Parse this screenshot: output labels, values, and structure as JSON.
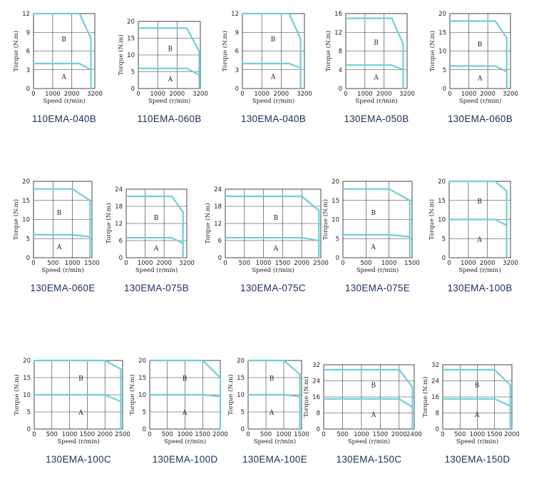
{
  "chart_data": [
    {
      "type": "line",
      "title": "110EMA-040B",
      "xlabel": "Speed (r/min)",
      "ylabel": "Torque (N.m)",
      "xticks": [
        0,
        1000,
        2000,
        3200
      ],
      "yticks": [
        3,
        6,
        9,
        12
      ],
      "xlim": [
        0,
        3200
      ],
      "ylim": [
        0,
        12
      ],
      "region_labels": [
        "B",
        "A"
      ],
      "series": [
        {
          "x": [
            0,
            2400,
            3000,
            3000
          ],
          "y": [
            12,
            12,
            8,
            0
          ]
        },
        {
          "x": [
            0,
            2400,
            3000
          ],
          "y": [
            4,
            4,
            3
          ]
        }
      ]
    },
    {
      "type": "line",
      "title": "110EMA-060B",
      "xlabel": "Speed (r/min)",
      "ylabel": "Torque (N.m)",
      "xticks": [
        0,
        1000,
        2000,
        3200
      ],
      "yticks": [
        5,
        10,
        15,
        20
      ],
      "xlim": [
        0,
        3200
      ],
      "ylim": [
        0,
        20
      ],
      "region_labels": [
        "B",
        "A"
      ],
      "series": [
        {
          "x": [
            0,
            2500,
            3150,
            3150
          ],
          "y": [
            18,
            18,
            11,
            0
          ]
        },
        {
          "x": [
            0,
            2500,
            3150
          ],
          "y": [
            6,
            6,
            4
          ]
        }
      ]
    },
    {
      "type": "line",
      "title": "130EMA-040B",
      "xlabel": "Speed (r/min)",
      "ylabel": "Torque (N.m)",
      "xticks": [
        0,
        1000,
        2000,
        3200
      ],
      "yticks": [
        3,
        6,
        9,
        12
      ],
      "xlim": [
        0,
        3200
      ],
      "ylim": [
        0,
        12
      ],
      "region_labels": [
        "B",
        "A"
      ],
      "series": [
        {
          "x": [
            0,
            2400,
            3000,
            3000
          ],
          "y": [
            12,
            12,
            8,
            0
          ]
        },
        {
          "x": [
            0,
            2400,
            3000
          ],
          "y": [
            4,
            4,
            3.3
          ]
        }
      ]
    },
    {
      "type": "line",
      "title": "130EMA-050B",
      "xlabel": "Speed (r/min)",
      "ylabel": "Torque (N.m)",
      "xticks": [
        0,
        1000,
        2000,
        3200
      ],
      "yticks": [
        4,
        8,
        12,
        16
      ],
      "xlim": [
        0,
        3200
      ],
      "ylim": [
        0,
        16
      ],
      "region_labels": [
        "B",
        "A"
      ],
      "series": [
        {
          "x": [
            0,
            2400,
            3000,
            3000
          ],
          "y": [
            15,
            15,
            9.5,
            0
          ]
        },
        {
          "x": [
            0,
            2400,
            3000
          ],
          "y": [
            5,
            5,
            4
          ]
        }
      ]
    },
    {
      "type": "line",
      "title": "130EMA-060B",
      "xlabel": "Speed (r/min)",
      "ylabel": "Torque (N.m)",
      "xticks": [
        0,
        1000,
        2000,
        3200
      ],
      "yticks": [
        5,
        10,
        15,
        20
      ],
      "xlim": [
        0,
        3200
      ],
      "ylim": [
        0,
        20
      ],
      "region_labels": [
        "B",
        "A"
      ],
      "series": [
        {
          "x": [
            0,
            2400,
            3000,
            3000
          ],
          "y": [
            18,
            18,
            13.5,
            0
          ]
        },
        {
          "x": [
            0,
            2400,
            3000
          ],
          "y": [
            6,
            6,
            4.5
          ]
        }
      ]
    },
    {
      "type": "line",
      "title": "130EMA-060E",
      "xlabel": "Speed (r/min)",
      "ylabel": "Torque (N.m)",
      "xticks": [
        0,
        500,
        1000,
        1500
      ],
      "yticks": [
        5,
        10,
        15,
        20
      ],
      "xlim": [
        0,
        1500
      ],
      "ylim": [
        0,
        20
      ],
      "region_labels": [
        "B",
        "A"
      ],
      "series": [
        {
          "x": [
            0,
            1000,
            1450,
            1450
          ],
          "y": [
            18,
            18,
            15,
            0
          ]
        },
        {
          "x": [
            0,
            1000,
            1450
          ],
          "y": [
            6,
            6,
            5.5
          ]
        }
      ]
    },
    {
      "type": "line",
      "title": "130EMA-075B",
      "xlabel": "Speed (r/min)",
      "ylabel": "Torque (N.m)",
      "xticks": [
        0,
        1000,
        2000,
        3200
      ],
      "yticks": [
        6,
        12,
        18,
        24
      ],
      "xlim": [
        0,
        3200
      ],
      "ylim": [
        0,
        24
      ],
      "region_labels": [
        "B",
        "A"
      ],
      "series": [
        {
          "x": [
            0,
            2400,
            3000,
            3000
          ],
          "y": [
            21.5,
            21.5,
            16,
            0
          ]
        },
        {
          "x": [
            0,
            2400,
            3000
          ],
          "y": [
            7,
            7,
            5
          ]
        }
      ]
    },
    {
      "type": "line",
      "title": "130EMA-075C",
      "xlabel": "Speed (r/min)",
      "ylabel": "Torque (N.m)",
      "xticks": [
        0,
        500,
        1000,
        1500,
        2000,
        2500
      ],
      "yticks": [
        6,
        12,
        18,
        24
      ],
      "xlim": [
        0,
        2500
      ],
      "ylim": [
        0,
        24
      ],
      "region_labels": [
        "B",
        "A"
      ],
      "series": [
        {
          "x": [
            0,
            2000,
            2450,
            2450
          ],
          "y": [
            21.5,
            21.5,
            16.5,
            0
          ]
        },
        {
          "x": [
            0,
            2000,
            2450
          ],
          "y": [
            7,
            7,
            6
          ]
        }
      ]
    },
    {
      "type": "line",
      "title": "130EMA-075E",
      "xlabel": "Speed (r/min)",
      "ylabel": "Torque (N.m)",
      "xticks": [
        0,
        500,
        1000,
        1500
      ],
      "yticks": [
        5,
        10,
        15,
        20
      ],
      "xlim": [
        0,
        1500
      ],
      "ylim": [
        0,
        20
      ],
      "region_labels": [
        "B",
        "A"
      ],
      "series": [
        {
          "x": [
            0,
            1000,
            1450,
            1450
          ],
          "y": [
            18,
            18,
            15,
            0
          ]
        },
        {
          "x": [
            0,
            1000,
            1450
          ],
          "y": [
            6,
            6,
            5.5
          ]
        }
      ]
    },
    {
      "type": "line",
      "title": "130EMA-100B",
      "xlabel": "Speed (r/min)",
      "ylabel": "Torque (N.m)",
      "xticks": [
        0,
        1000,
        2000,
        3200
      ],
      "yticks": [
        5,
        10,
        15,
        20
      ],
      "xlim": [
        0,
        3200
      ],
      "ylim": [
        0,
        20
      ],
      "region_labels": [
        "B",
        "A"
      ],
      "series": [
        {
          "x": [
            0,
            2400,
            3000,
            3000
          ],
          "y": [
            20,
            20,
            17.5,
            0
          ]
        },
        {
          "x": [
            0,
            2400,
            3000
          ],
          "y": [
            10,
            10,
            8.5
          ]
        }
      ]
    },
    {
      "type": "line",
      "title": "130EMA-100C",
      "xlabel": "Speed (r/min)",
      "ylabel": "Torque (N.m)",
      "xticks": [
        0,
        500,
        1000,
        1500,
        2000,
        2500
      ],
      "yticks": [
        5,
        10,
        15,
        20
      ],
      "xlim": [
        0,
        2500
      ],
      "ylim": [
        0,
        20
      ],
      "region_labels": [
        "B",
        "A"
      ],
      "series": [
        {
          "x": [
            0,
            2000,
            2450,
            2450
          ],
          "y": [
            20,
            20,
            17.5,
            0
          ]
        },
        {
          "x": [
            0,
            2000,
            2450
          ],
          "y": [
            10,
            10,
            8
          ]
        }
      ]
    },
    {
      "type": "line",
      "title": "130EMA-100D",
      "xlabel": "Speed (r/min)",
      "ylabel": "Torque (N.m)",
      "xticks": [
        0,
        500,
        1000,
        1500,
        2000
      ],
      "yticks": [
        5,
        10,
        15,
        20
      ],
      "xlim": [
        0,
        2000
      ],
      "ylim": [
        0,
        20
      ],
      "region_labels": [
        "B",
        "A"
      ],
      "series": [
        {
          "x": [
            0,
            1500,
            2000,
            2000
          ],
          "y": [
            20,
            20,
            15,
            0
          ]
        },
        {
          "x": [
            0,
            1500,
            2000
          ],
          "y": [
            10,
            10,
            9.5
          ]
        }
      ]
    },
    {
      "type": "line",
      "title": "130EMA-100E",
      "xlabel": "Speed (r/min)",
      "ylabel": "Torque (N.m)",
      "xticks": [
        0,
        500,
        1000,
        1500
      ],
      "yticks": [
        5,
        10,
        15,
        20
      ],
      "xlim": [
        0,
        1500
      ],
      "ylim": [
        0,
        20
      ],
      "region_labels": [
        "B",
        "A"
      ],
      "series": [
        {
          "x": [
            0,
            1000,
            1450,
            1450
          ],
          "y": [
            20,
            20,
            16,
            0
          ]
        },
        {
          "x": [
            0,
            1000,
            1450
          ],
          "y": [
            10,
            10,
            9.5
          ]
        }
      ]
    },
    {
      "type": "line",
      "title": "130EMA-150C",
      "xlabel": "Speed (r/min)",
      "ylabel": "Torque (N.m)",
      "xticks": [
        0,
        500,
        1000,
        1500,
        2000,
        2400
      ],
      "yticks": [
        8,
        16,
        24,
        32
      ],
      "xlim": [
        0,
        2400
      ],
      "ylim": [
        0,
        32
      ],
      "region_labels": [
        "B",
        "A"
      ],
      "series": [
        {
          "x": [
            0,
            2000,
            2350,
            2350
          ],
          "y": [
            29.5,
            29.5,
            21,
            0
          ]
        },
        {
          "x": [
            0,
            2000,
            2350
          ],
          "y": [
            15,
            15,
            11
          ]
        }
      ]
    },
    {
      "type": "line",
      "title": "130EMA-150D",
      "xlabel": "Speed (r/min)",
      "ylabel": "Torque (N.m)",
      "xticks": [
        0,
        500,
        1000,
        1500,
        2000
      ],
      "yticks": [
        8,
        16,
        24,
        32
      ],
      "xlim": [
        0,
        2000
      ],
      "ylim": [
        0,
        32
      ],
      "region_labels": [
        "B",
        "A"
      ],
      "series": [
        {
          "x": [
            0,
            1500,
            1950,
            1950
          ],
          "y": [
            29.5,
            29.5,
            22,
            0
          ]
        },
        {
          "x": [
            0,
            1500,
            1950
          ],
          "y": [
            15,
            15,
            11.5
          ]
        }
      ]
    }
  ],
  "colors": {
    "curve": "#6ecfd9",
    "frame": "#333333",
    "grid": "#333333",
    "title": "#1a2f5a"
  }
}
